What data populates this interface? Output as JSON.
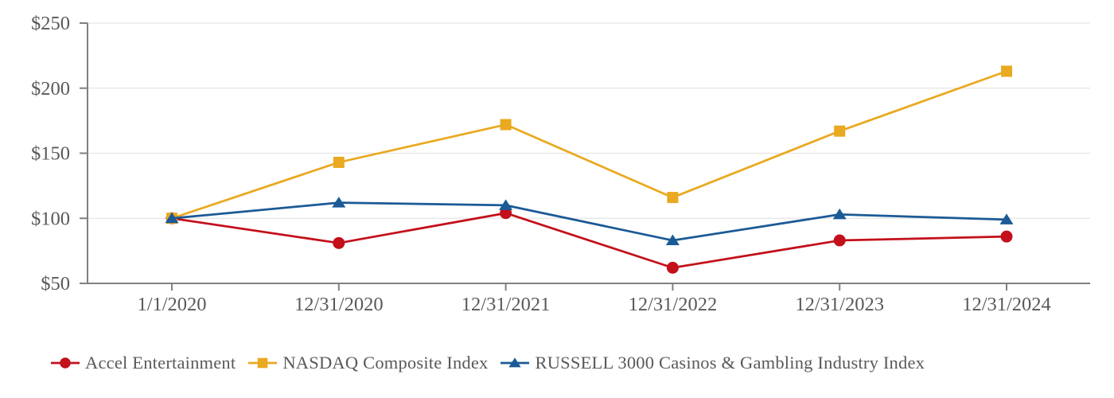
{
  "chart_data": {
    "type": "line",
    "title": "",
    "xlabel": "",
    "ylabel": "",
    "categories": [
      "1/1/2020",
      "12/31/2020",
      "12/31/2021",
      "12/31/2022",
      "12/31/2023",
      "12/31/2024"
    ],
    "series": [
      {
        "name": "Accel Entertainment",
        "color": "#C3101B",
        "marker": "circle",
        "values": [
          100,
          81,
          104,
          62,
          83,
          86
        ]
      },
      {
        "name": "NASDAQ Composite Index",
        "color": "#E9A920",
        "marker": "square",
        "values": [
          100,
          143,
          172,
          116,
          167,
          213
        ]
      },
      {
        "name": "RUSSELL 3000 Casinos & Gambling Industry Index",
        "color": "#1B5A96",
        "marker": "triangle",
        "values": [
          100,
          112,
          110,
          83,
          103,
          99
        ]
      }
    ],
    "y_axis": {
      "min": 50,
      "max": 250,
      "step": 50,
      "prefix": "$",
      "tick_labels": [
        "$50",
        "$100",
        "$150",
        "$200",
        "$250"
      ]
    },
    "grid": true,
    "legend_position": "bottom-left",
    "colors": {
      "axis": "#808080",
      "gridline": "#E5E5E5",
      "tick_label": "#595959",
      "legend_text": "#595959"
    }
  }
}
